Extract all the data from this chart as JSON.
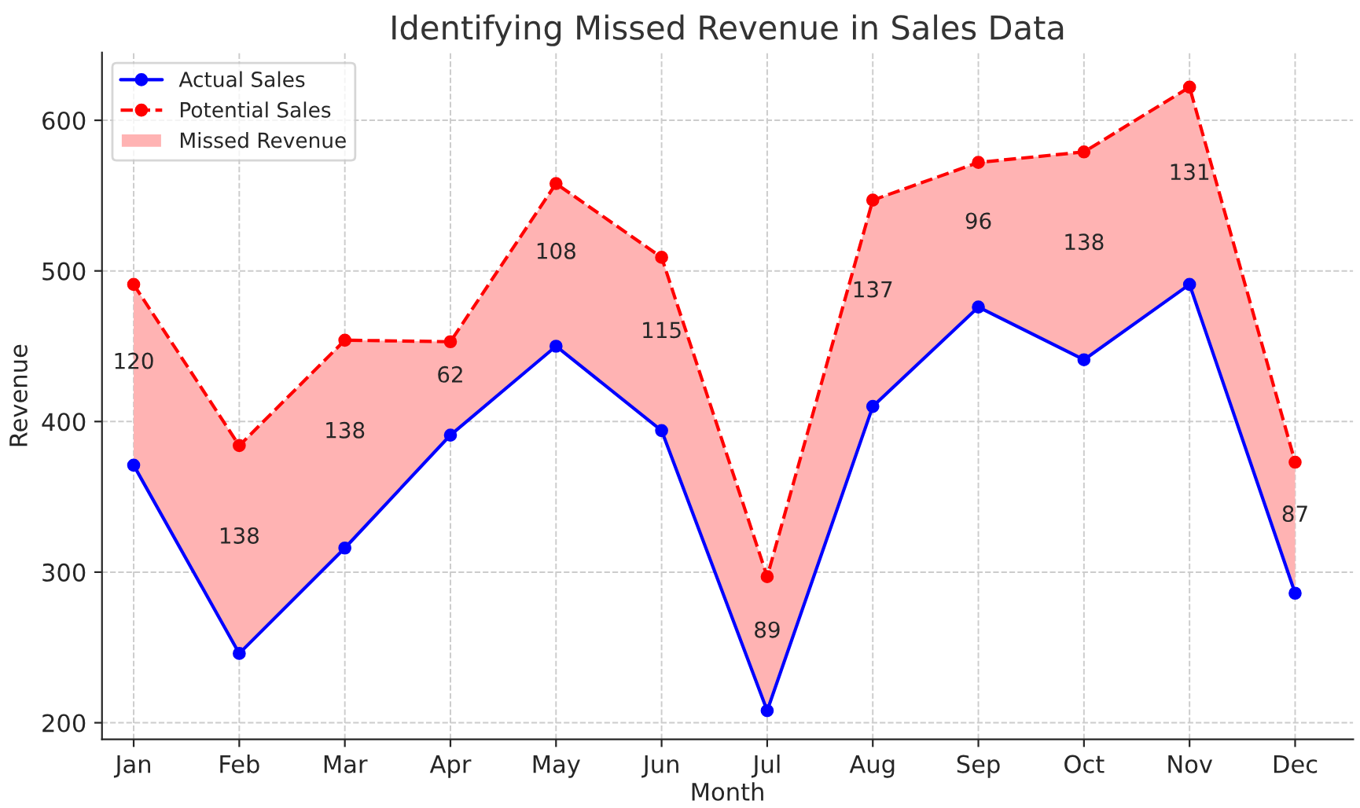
{
  "chart_data": {
    "type": "line",
    "title": "Identifying Missed Revenue in Sales Data",
    "xlabel": "Month",
    "ylabel": "Revenue",
    "categories": [
      "Jan",
      "Feb",
      "Mar",
      "Apr",
      "May",
      "Jun",
      "Jul",
      "Aug",
      "Sep",
      "Oct",
      "Nov",
      "Dec"
    ],
    "series": [
      {
        "name": "Actual Sales",
        "color": "#0000ff",
        "marker": "circle",
        "line_style": "solid",
        "values": [
          371,
          246,
          316,
          391,
          450,
          394,
          208,
          410,
          476,
          441,
          491,
          286
        ]
      },
      {
        "name": "Potential Sales",
        "color": "#ff0000",
        "marker": "circle",
        "line_style": "dashed",
        "values": [
          491,
          384,
          454,
          453,
          558,
          509,
          297,
          547,
          572,
          579,
          622,
          373
        ]
      },
      {
        "name": "Missed Revenue",
        "type": "area",
        "color": "#ffb3b3",
        "values": [
          null,
          null,
          null,
          null,
          null,
          null,
          null,
          null,
          null,
          null,
          null,
          null
        ],
        "lower": [
          371,
          246,
          316,
          391,
          450,
          394,
          208,
          410,
          476,
          441,
          491,
          286
        ],
        "upper": [
          491,
          384,
          454,
          453,
          558,
          509,
          297,
          547,
          572,
          579,
          622,
          373
        ]
      }
    ],
    "annotations": [
      "120",
      "138",
      "138",
      "62",
      "108",
      "115",
      "89",
      "137",
      "96",
      "138",
      "131",
      "87"
    ],
    "ylim": [
      189,
      645
    ],
    "yticks": [
      200,
      300,
      400,
      500,
      600
    ],
    "grid": true,
    "legend": "top left"
  }
}
